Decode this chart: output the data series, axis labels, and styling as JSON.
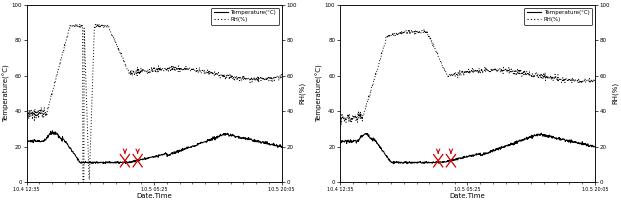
{
  "xlabel": "Date.Time",
  "ylabel_left": "Temperature(°C)",
  "ylabel_right": "RH(%)",
  "xtick_labels": [
    "10.4 12:35",
    "10.5 05:25",
    "10.5 20:05"
  ],
  "yticks": [
    0,
    20,
    40,
    60,
    80,
    100
  ],
  "ylim": [
    0,
    100
  ],
  "legend_temp": "Temperature(°C)",
  "legend_rh": "RH(%)",
  "bg_color": "#ffffff",
  "line_color": "#000000",
  "arrow_color": "#cc0000"
}
